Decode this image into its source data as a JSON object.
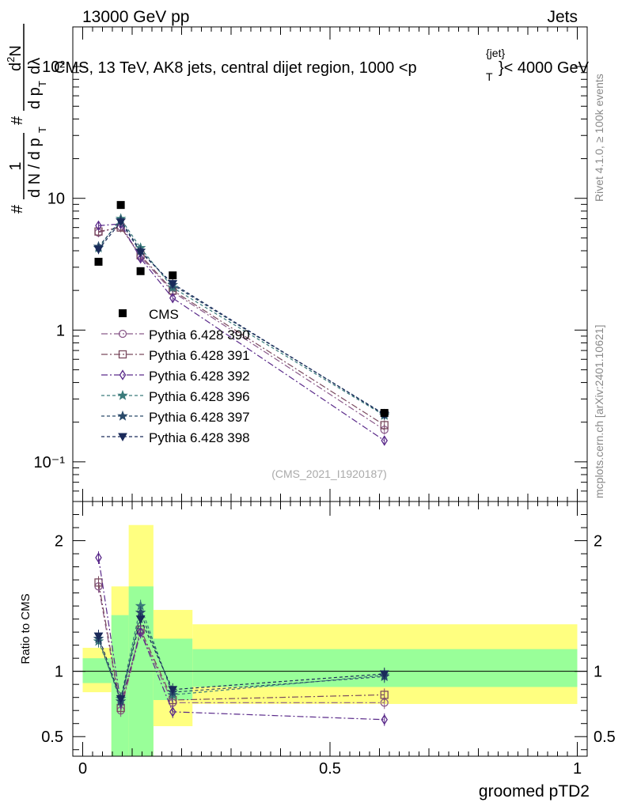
{
  "header": {
    "left": "13000 GeV pp",
    "right": "Jets",
    "plot_title": "CMS, 13 TeV, AK8 jets, central dijet region, 1000 <p",
    "plot_title_sup": "{jet}",
    "plot_title_sub": "T",
    "plot_title_end": "}< 4000 GeV",
    "watermark": "(CMS_2021_I1920187)",
    "side_rivet": "Rivet 4.1.0, ≥ 100k events",
    "side_mcplots": "mcplots.cern.ch [arXiv:2401.10621]"
  },
  "ylabel_top": {
    "prefix": "#",
    "fraction1_num": "1",
    "fraction1_den": "d N / d p",
    "fraction1_den_sub": "T",
    "hash2": "#",
    "fraction2_num": "d",
    "fraction2_num_sup": "2",
    "fraction2_num_end": "N",
    "fraction2_den": "d p",
    "fraction2_den_sub": "T",
    "fraction2_den_end": "dλ"
  },
  "ylabel_bottom": "Ratio to CMS",
  "xlabel": "groomed pTD2",
  "chart_data": [
    {
      "type": "scatter",
      "panel": "main",
      "yscale": "log",
      "ylim": [
        0.05,
        200
      ],
      "xlim": [
        -0.02,
        1.02
      ],
      "ytick_labels": [
        "10⁻¹",
        "1",
        "10",
        "10²"
      ],
      "ytick_values": [
        0.1,
        1,
        10,
        100
      ],
      "data": {
        "name": "CMS",
        "x": [
          0.032,
          0.077,
          0.117,
          0.182,
          0.61
        ],
        "y": [
          3.3,
          8.9,
          2.8,
          2.6,
          0.235
        ]
      },
      "series": [
        {
          "name": "Pythia 6.428 390",
          "color": "#8a5a8a",
          "marker": "circle",
          "dash": "8,3,2,3",
          "y": [
            5.5,
            6.1,
            3.6,
            1.95,
            0.175
          ]
        },
        {
          "name": "Pythia 6.428 391",
          "color": "#7a4a5e",
          "marker": "square",
          "dash": "8,3,2,3",
          "y": [
            5.6,
            6.0,
            3.7,
            2.0,
            0.19
          ]
        },
        {
          "name": "Pythia 6.428 392",
          "color": "#5a2a8a",
          "marker": "diamond",
          "dash": "8,3,2,3",
          "y": [
            6.2,
            6.4,
            3.5,
            1.75,
            0.145
          ]
        },
        {
          "name": "Pythia 6.428 396",
          "color": "#3a7a7a",
          "marker": "star",
          "dash": "4,3",
          "y": [
            4.2,
            7.0,
            4.2,
            2.1,
            0.225
          ]
        },
        {
          "name": "Pythia 6.428 397",
          "color": "#2a4a6a",
          "marker": "star",
          "dash": "4,3",
          "y": [
            4.3,
            6.8,
            4.0,
            2.2,
            0.23
          ]
        },
        {
          "name": "Pythia 6.428 398",
          "color": "#1a2a5a",
          "marker": "triangle-down",
          "dash": "4,3",
          "y": [
            4.1,
            6.6,
            3.9,
            2.25,
            0.228
          ]
        }
      ]
    },
    {
      "type": "scatter",
      "panel": "ratio",
      "ylim": [
        0.35,
        2.3
      ],
      "xlim": [
        -0.02,
        1.02
      ],
      "ytick_labels": [
        "0.5",
        "1",
        "2"
      ],
      "ytick_values": [
        0.5,
        1,
        2
      ],
      "xtick_labels": [
        "0",
        "0.5",
        "1"
      ],
      "xtick_values": [
        0,
        0.5,
        1
      ],
      "bands": [
        {
          "x0": 0.0,
          "x1": 0.058,
          "yellow": [
            0.84,
            1.18
          ],
          "green": [
            0.91,
            1.1
          ]
        },
        {
          "x0": 0.058,
          "x1": 0.093,
          "yellow": [
            0.28,
            1.65
          ],
          "green": [
            0.28,
            1.43
          ]
        },
        {
          "x0": 0.093,
          "x1": 0.143,
          "yellow": [
            0.28,
            2.12
          ],
          "green": [
            0.28,
            1.65
          ]
        },
        {
          "x0": 0.143,
          "x1": 0.222,
          "yellow": [
            0.58,
            1.47
          ],
          "green": [
            0.78,
            1.25
          ]
        },
        {
          "x0": 0.222,
          "x1": 1.0,
          "yellow": [
            0.75,
            1.36
          ],
          "green": [
            0.88,
            1.17
          ]
        }
      ],
      "series": [
        {
          "name": "Pythia 6.428 390",
          "y": [
            1.65,
            0.7,
            1.3,
            0.76,
            0.76
          ]
        },
        {
          "name": "Pythia 6.428 391",
          "y": [
            1.68,
            0.72,
            1.32,
            0.78,
            0.82
          ]
        },
        {
          "name": "Pythia 6.428 392",
          "y": [
            1.87,
            0.76,
            1.3,
            0.69,
            0.63
          ]
        },
        {
          "name": "Pythia 6.428 396",
          "y": [
            1.23,
            0.79,
            1.5,
            0.82,
            0.97
          ]
        },
        {
          "name": "Pythia 6.428 397",
          "y": [
            1.25,
            0.77,
            1.45,
            0.84,
            0.96
          ]
        },
        {
          "name": "Pythia 6.428 398",
          "y": [
            1.27,
            0.79,
            1.4,
            0.86,
            0.98
          ]
        }
      ]
    }
  ]
}
